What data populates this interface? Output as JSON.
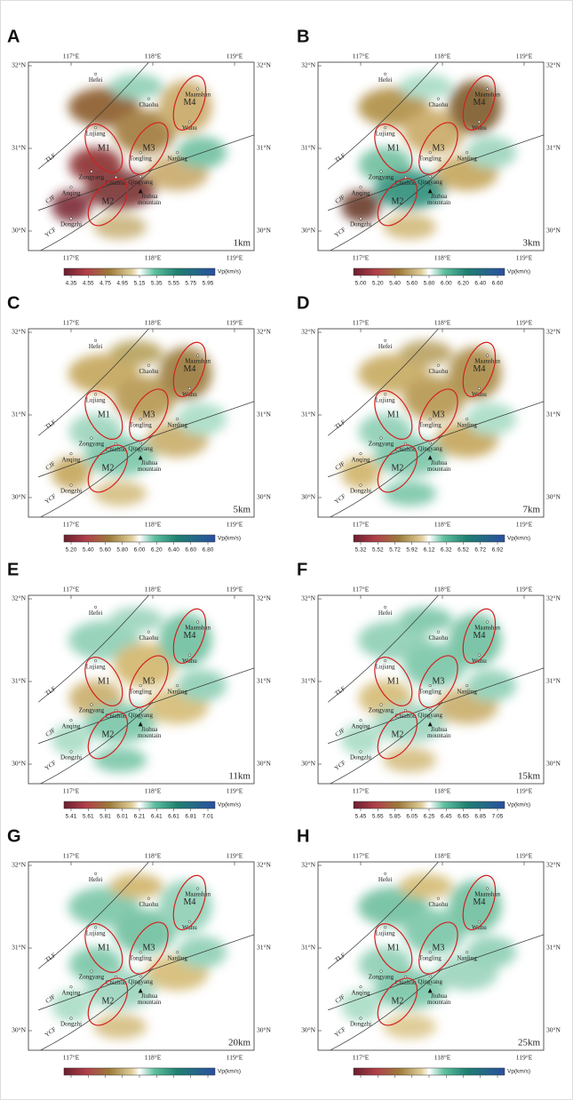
{
  "figure": {
    "axis_labels": {
      "lon": [
        "117°E",
        "118°E",
        "119°E"
      ],
      "lat": [
        "32°N",
        "31°N",
        "30°N"
      ]
    },
    "places": [
      "Hefei",
      "Chaohu",
      "Maanshan",
      "Wuhu",
      "Lujiang",
      "Tongling",
      "Nanling",
      "Zongyang",
      "Chizhou",
      "Qingyang",
      "Anqing",
      "Jiuhua",
      "mountain",
      "Dongzhi"
    ],
    "faults": [
      "TLF",
      "CJF",
      "YCF"
    ],
    "zones": [
      "M1",
      "M2",
      "M3",
      "M4"
    ],
    "colorbar_unit": "Vp(km/s)",
    "panels": [
      {
        "letter": "A",
        "depth": "1km",
        "ticks": [
          "4.35",
          "4.55",
          "4.75",
          "4.95",
          "5.15",
          "5.35",
          "5.55",
          "5.75",
          "5.95"
        ]
      },
      {
        "letter": "B",
        "depth": "3km",
        "ticks": [
          "5.00",
          "5.20",
          "5.40",
          "5.60",
          "5.80",
          "6.00",
          "6.20",
          "6.40",
          "6.60"
        ]
      },
      {
        "letter": "C",
        "depth": "5km",
        "ticks": [
          "5.20",
          "5.40",
          "5.60",
          "5.80",
          "6.00",
          "6.20",
          "6.40",
          "6.60",
          "6.80"
        ]
      },
      {
        "letter": "D",
        "depth": "7km",
        "ticks": [
          "5.32",
          "5.52",
          "5.72",
          "5.92",
          "6.12",
          "6.32",
          "6.52",
          "6.72",
          "6.92"
        ]
      },
      {
        "letter": "E",
        "depth": "11km",
        "ticks": [
          "5.41",
          "5.61",
          "5.81",
          "6.01",
          "6.21",
          "6.41",
          "6.61",
          "6.81",
          "7.01"
        ]
      },
      {
        "letter": "F",
        "depth": "15km",
        "ticks": [
          "5.45",
          "5.65",
          "5.85",
          "6.05",
          "6.25",
          "6.45",
          "6.65",
          "6.85",
          "7.05"
        ]
      },
      {
        "letter": "G",
        "depth": "20km",
        "ticks": []
      },
      {
        "letter": "H",
        "depth": "25km",
        "ticks": []
      }
    ]
  }
}
